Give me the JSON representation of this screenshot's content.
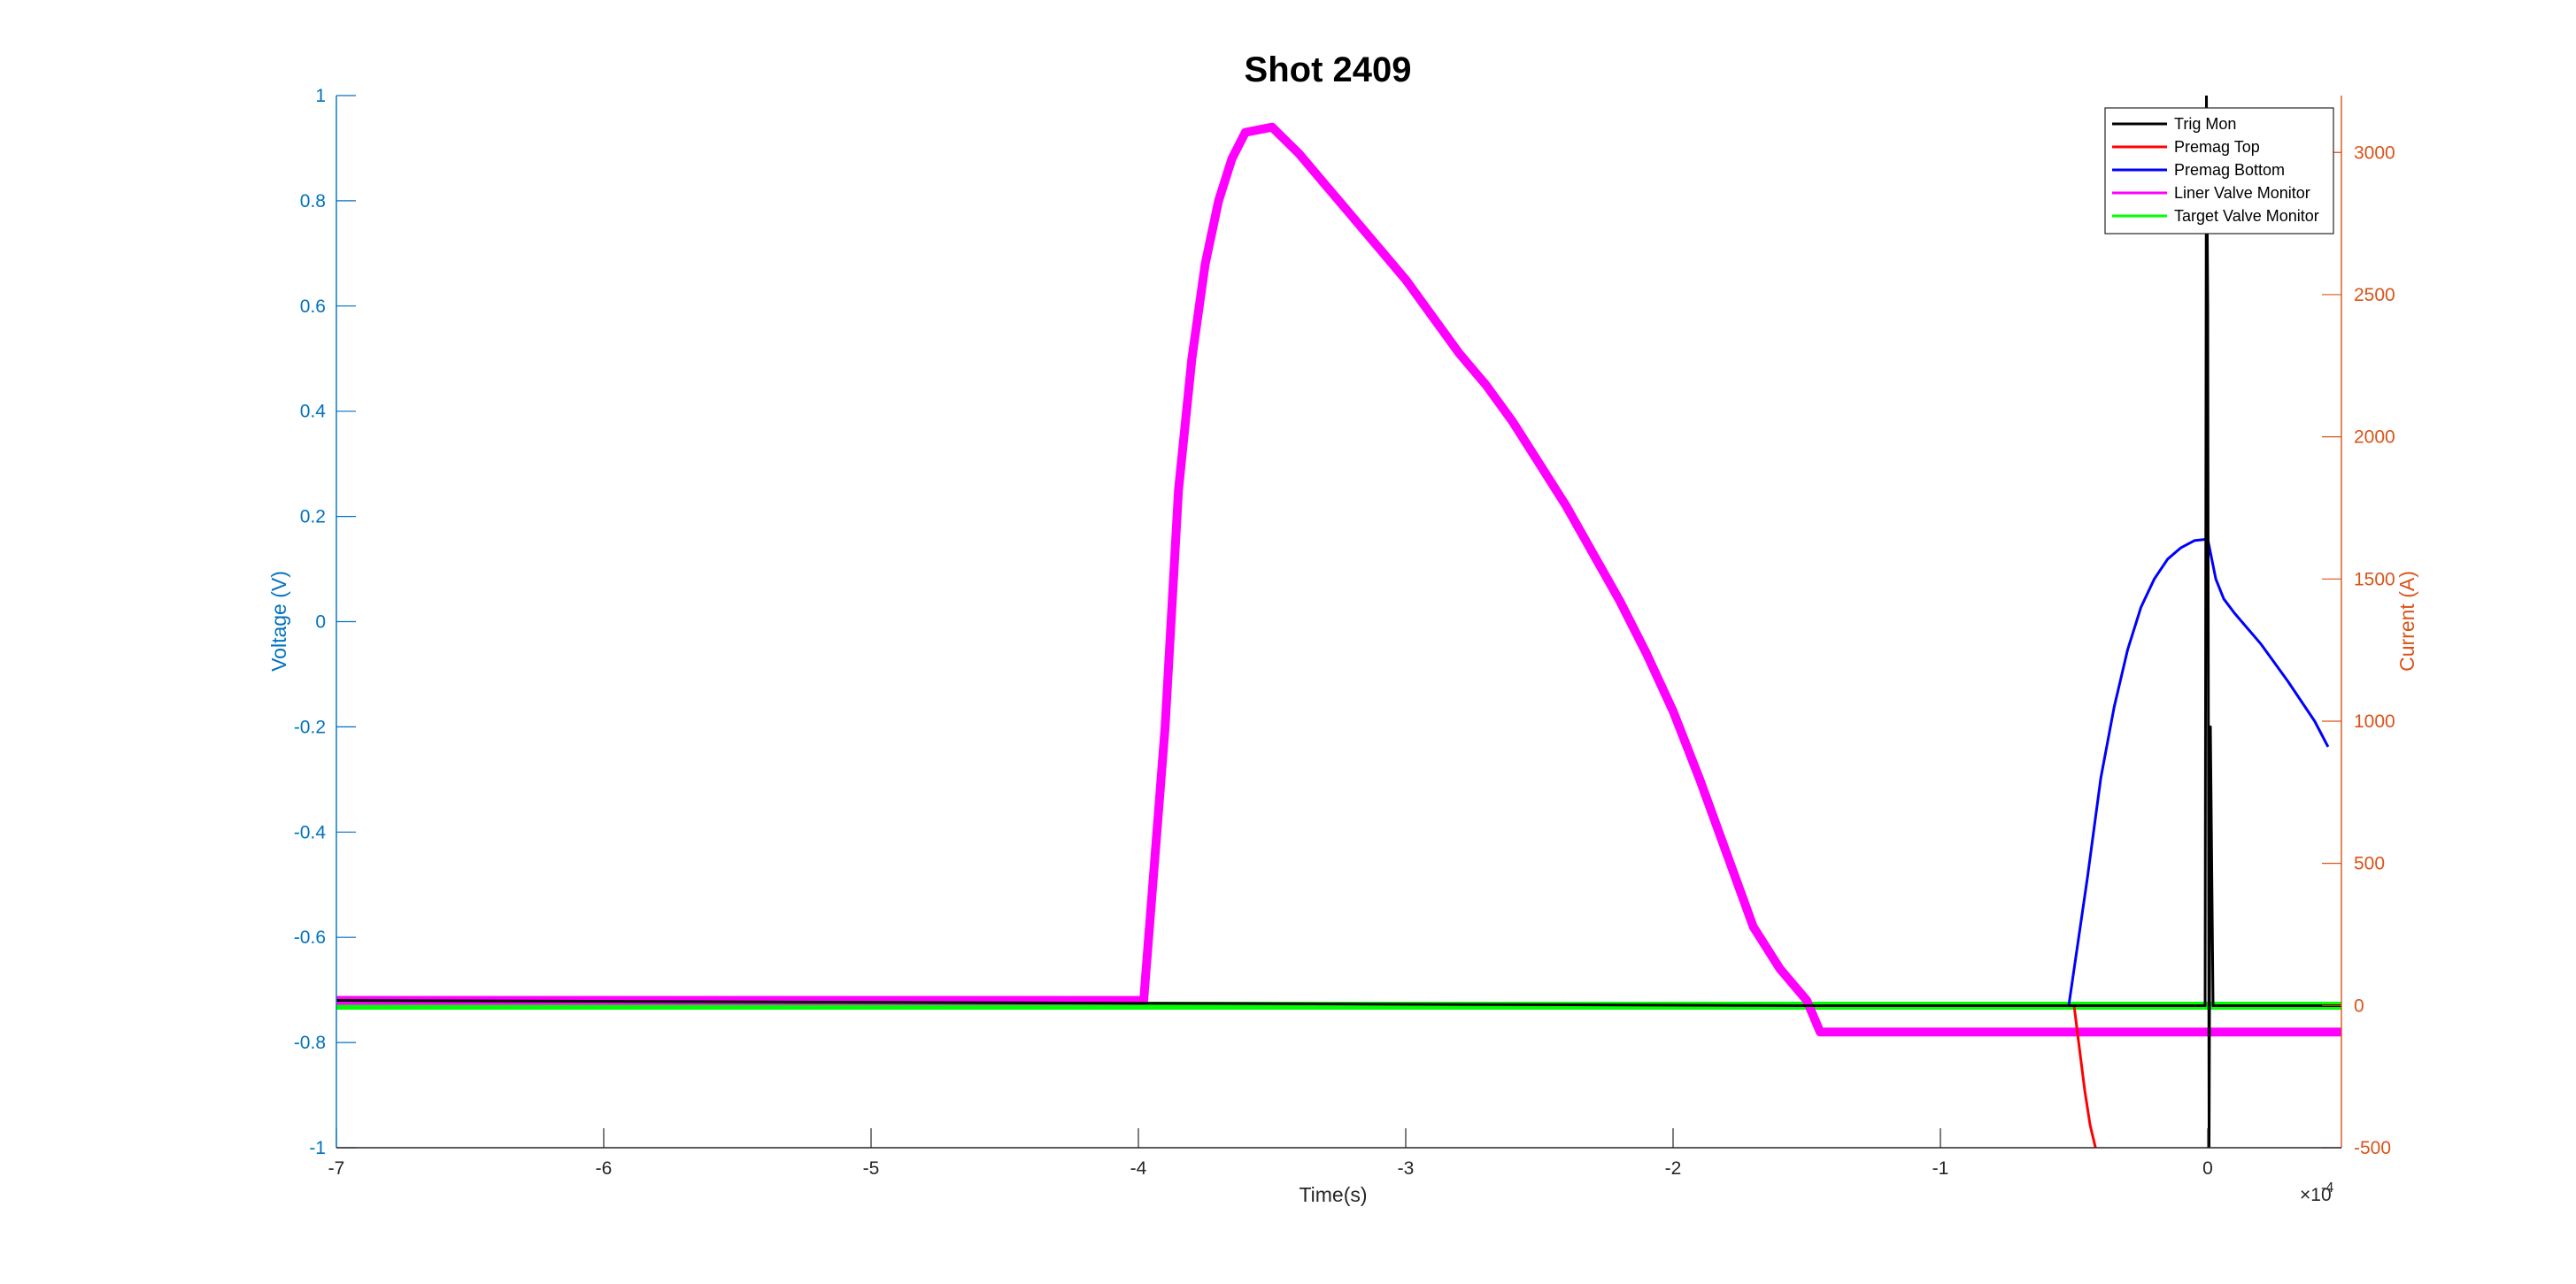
{
  "chart_data": {
    "type": "line",
    "title": "Shot 2409",
    "xlabel": "Time(s)",
    "x_exponent_label": "×10",
    "x_exponent_power": "-4",
    "ylabel_left": "Voltage (V)",
    "ylabel_right": "Current (A)",
    "xlim": [
      -7,
      0.5
    ],
    "ylim_left": [
      -1,
      1
    ],
    "ylim_right": [
      -500,
      3200
    ],
    "x_ticks": [
      "-7",
      "-6",
      "-5",
      "-4",
      "-3",
      "-2",
      "-1",
      "0"
    ],
    "y_left_ticks": [
      "-1",
      "-0.8",
      "-0.6",
      "-0.4",
      "-0.2",
      "0",
      "0.2",
      "0.4",
      "0.6",
      "0.8",
      "1"
    ],
    "y_right_ticks": [
      "-500",
      "0",
      "500",
      "1000",
      "1500",
      "2000",
      "2500",
      "3000"
    ],
    "legend_position": "top-right",
    "series": [
      {
        "name": "Trig Mon",
        "color": "#000000",
        "axis": "left",
        "x": [
          -7,
          -1.5,
          -0.05,
          -0.02,
          -0.01,
          -0.005,
          0,
          0.005,
          0.01,
          0.02,
          0.05,
          0.5
        ],
        "y": [
          -0.72,
          -0.73,
          -0.73,
          -0.73,
          -0.73,
          1.0,
          0.6,
          -1.0,
          -0.2,
          -0.73,
          -0.73,
          -0.73
        ]
      },
      {
        "name": "Premag Top",
        "color": "#FF0000",
        "axis": "right",
        "x": [
          -0.5,
          -0.48,
          -0.46,
          -0.44,
          -0.42
        ],
        "y": [
          0,
          -150,
          -300,
          -420,
          -500
        ]
      },
      {
        "name": "Premag Bottom",
        "color": "#0000FF",
        "axis": "right",
        "x": [
          -0.52,
          -0.45,
          -0.4,
          -0.35,
          -0.3,
          -0.25,
          -0.2,
          -0.15,
          -0.1,
          -0.05,
          0,
          0.03,
          0.06,
          0.1,
          0.2,
          0.3,
          0.4,
          0.45
        ],
        "y": [
          0,
          450,
          800,
          1050,
          1250,
          1400,
          1500,
          1570,
          1610,
          1635,
          1640,
          1500,
          1430,
          1380,
          1270,
          1140,
          1000,
          910
        ]
      },
      {
        "name": "Liner Valve Monitor",
        "color": "#FF00FF",
        "axis": "left",
        "x": [
          -7,
          -4.05,
          -3.98,
          -3.9,
          -3.85,
          -3.8,
          -3.75,
          -3.7,
          -3.65,
          -3.6,
          -3.5,
          -3.4,
          -3.3,
          -3.2,
          -3.1,
          -3.0,
          -2.9,
          -2.8,
          -2.7,
          -2.6,
          -2.5,
          -2.4,
          -2.3,
          -2.2,
          -2.1,
          -2.0,
          -1.9,
          -1.8,
          -1.7,
          -1.6,
          -1.5,
          -1.45,
          -1.0,
          -0.5,
          0,
          0.5
        ],
        "y": [
          -0.72,
          -0.72,
          -0.72,
          -0.2,
          0.25,
          0.5,
          0.68,
          0.8,
          0.88,
          0.93,
          0.94,
          0.89,
          0.83,
          0.77,
          0.71,
          0.65,
          0.58,
          0.51,
          0.45,
          0.38,
          0.3,
          0.22,
          0.13,
          0.04,
          -0.06,
          -0.17,
          -0.3,
          -0.44,
          -0.58,
          -0.66,
          -0.72,
          -0.78,
          -0.78,
          -0.78,
          -0.78,
          -0.78
        ]
      },
      {
        "name": "Target Valve Monitor",
        "color": "#00FF00",
        "axis": "left",
        "x": [
          -7,
          0.5
        ],
        "y": [
          -0.73,
          -0.73
        ]
      }
    ]
  }
}
